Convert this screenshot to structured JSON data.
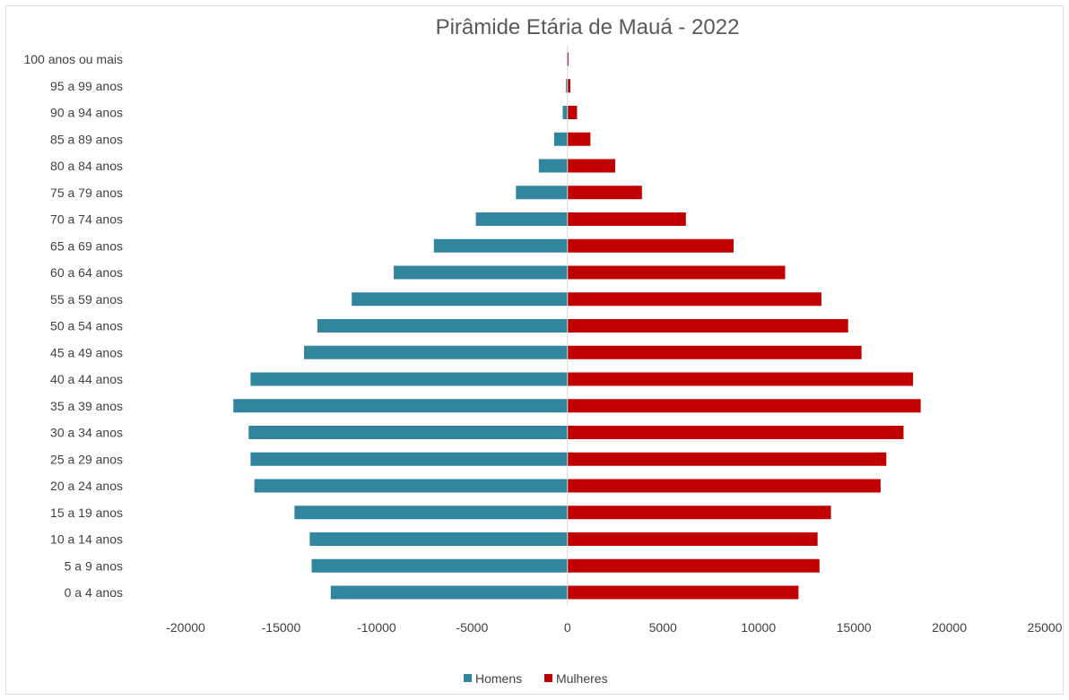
{
  "chart_data": {
    "type": "bar",
    "orientation": "horizontal",
    "title": "Pirâmide Etária de Mauá - 2022",
    "xlabel": "",
    "ylabel": "",
    "categories": [
      "0 a 4 anos",
      "5 a 9 anos",
      "10 a 14 anos",
      "15 a 19 anos",
      "20 a 24 anos",
      "25 a 29 anos",
      "30 a 34 anos",
      "35 a 39 anos",
      "40 a 44 anos",
      "45 a 49 anos",
      "50 a 54 anos",
      "55 a 59 anos",
      "60 a 64 anos",
      "65 a 69 anos",
      "70 a 74 anos",
      "75 a 79 anos",
      "80 a 84 anos",
      "85 a 89 anos",
      "90 a 94 anos",
      "95 a 99 anos",
      "100 anos ou mais"
    ],
    "series": [
      {
        "name": "Homens",
        "color": "#31859c",
        "values": [
          -12400,
          -13400,
          -13500,
          -14300,
          -16400,
          -16600,
          -16700,
          -17500,
          -16600,
          -13800,
          -13100,
          -11300,
          -9100,
          -7000,
          -4800,
          -2700,
          -1500,
          -700,
          -250,
          -80,
          -40
        ]
      },
      {
        "name": "Mulheres",
        "color": "#c00000",
        "values": [
          12100,
          13200,
          13100,
          13800,
          16400,
          16700,
          17600,
          18500,
          18100,
          15400,
          14700,
          13300,
          11400,
          8700,
          6200,
          3900,
          2500,
          1200,
          500,
          150,
          60
        ]
      }
    ],
    "x_ticks": [
      -20000,
      -15000,
      -10000,
      -5000,
      0,
      5000,
      10000,
      15000,
      20000,
      25000
    ],
    "xlim": [
      -20000,
      25000
    ],
    "grid": false,
    "legend": "bottom"
  }
}
